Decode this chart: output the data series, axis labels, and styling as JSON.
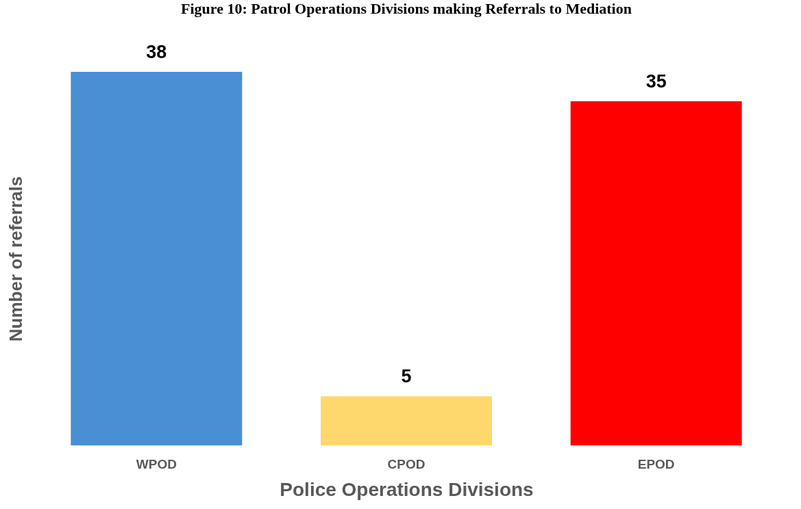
{
  "chart_data": {
    "type": "bar",
    "title": "Figure 10: Patrol Operations Divisions making Referrals to Mediation",
    "categories": [
      "WPOD",
      "CPOD",
      "EPOD"
    ],
    "values": [
      38,
      5,
      35
    ],
    "colors": [
      "#4a8fd4",
      "#fed86c",
      "#ff0000"
    ],
    "xlabel": "Police Operations Divisions",
    "ylabel": "Number of referrals",
    "data_labels": true,
    "grid": false
  }
}
